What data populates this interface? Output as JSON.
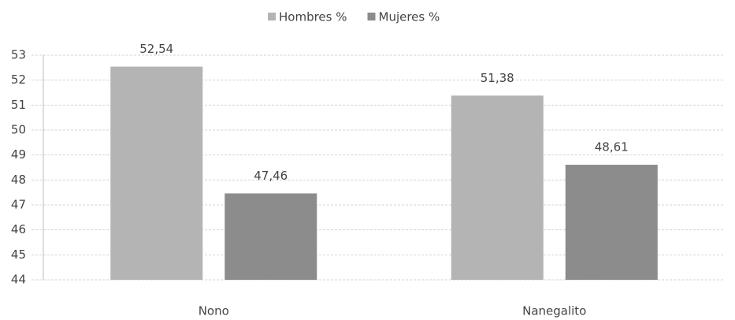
{
  "chart_data": {
    "type": "bar",
    "categories": [
      "Nono",
      "Nanegalito"
    ],
    "series": [
      {
        "name": "Hombres %",
        "color": "#b4b4b4",
        "values": [
          52.54,
          51.38
        ],
        "value_labels": [
          "52,54",
          "51,38"
        ]
      },
      {
        "name": "Mujeres %",
        "color": "#8c8c8c",
        "values": [
          47.46,
          48.61
        ],
        "value_labels": [
          "47,46",
          "48,61"
        ]
      }
    ],
    "ylim": [
      44,
      53
    ],
    "yticks": [
      44,
      45,
      46,
      47,
      48,
      49,
      50,
      51,
      52,
      53
    ],
    "grid": true,
    "legend": "top"
  }
}
